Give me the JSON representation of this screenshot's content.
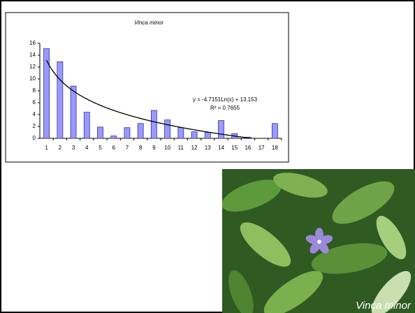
{
  "chart_data": {
    "type": "bar",
    "title": "Vinca minor",
    "categories": [
      "1",
      "2",
      "3",
      "4",
      "5",
      "6",
      "7",
      "8",
      "9",
      "10",
      "11",
      "12",
      "13",
      "14",
      "15",
      "16",
      "17",
      "18"
    ],
    "values": [
      15.1,
      12.9,
      8.8,
      4.4,
      1.9,
      0.4,
      1.8,
      2.5,
      4.7,
      3.1,
      1.8,
      1.1,
      1.0,
      3.0,
      0.8,
      0.2,
      0,
      2.5
    ],
    "color": "#9999ff",
    "ylim": [
      0,
      16
    ],
    "yticks": [
      0,
      2,
      4,
      6,
      8,
      10,
      12,
      14,
      16
    ],
    "trendline": {
      "type": "log",
      "coef": -4.7151,
      "intercept": 13.153,
      "color": "#000000",
      "equation": "y = -4.7151Ln(x) + 13.153",
      "r2": "R² = 0.7655"
    }
  },
  "photo": {
    "caption": "Vinca minor"
  }
}
